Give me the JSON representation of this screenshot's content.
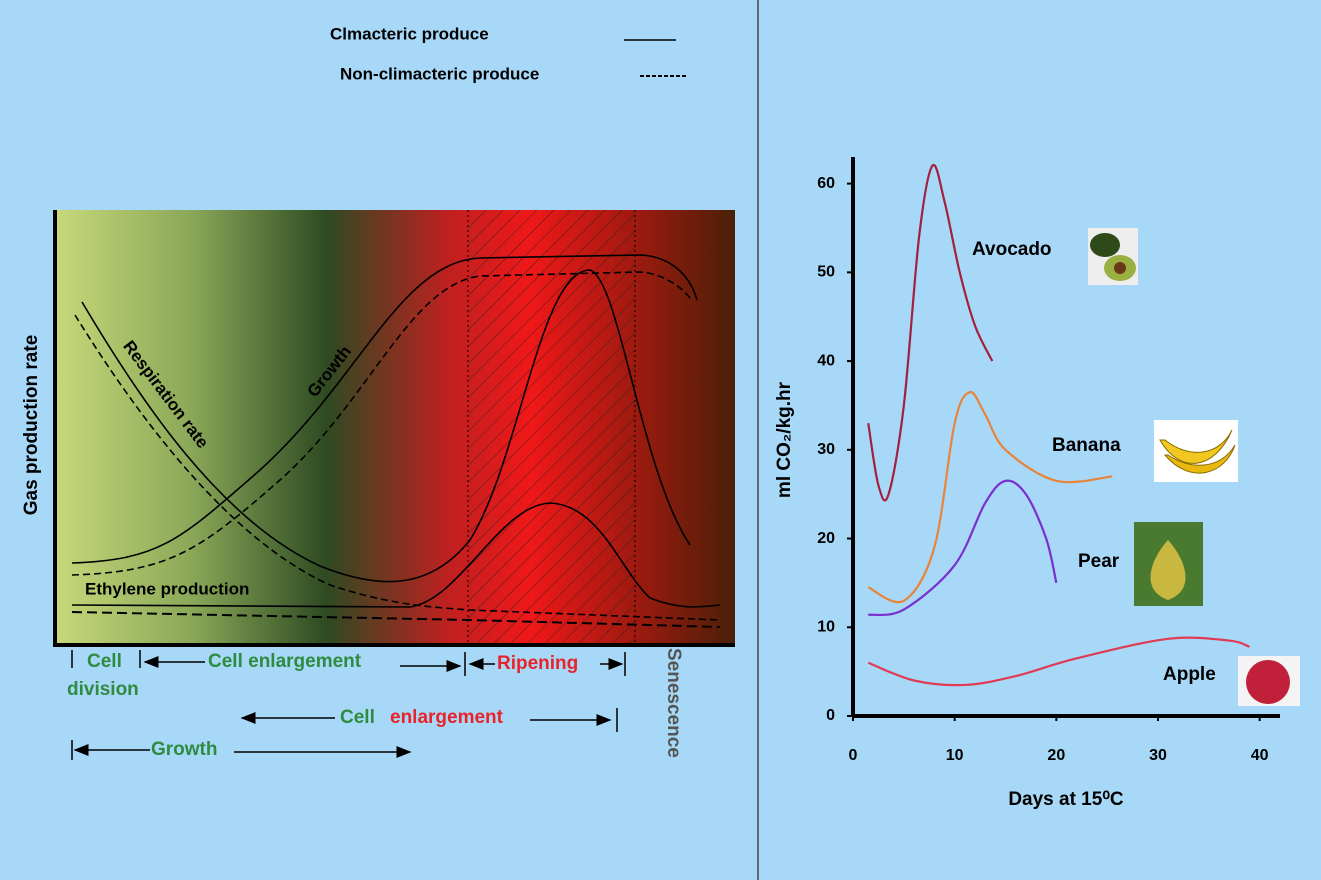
{
  "diagram": {
    "legend": [
      "Clmacteric produce",
      "Non-climacteric produce"
    ],
    "y_axis_label": "Gas production rate",
    "curve_labels": {
      "respiration": "Respiration rate",
      "growth": "Growth",
      "ethylene": "Ethylene production"
    },
    "phase_labels": {
      "cell_division": [
        "Cell",
        "division"
      ],
      "cell_enlargement": "Cell enlargement",
      "ripening": "Ripening",
      "senescence": "Senescence"
    },
    "climacteric_labels": {
      "cell": "Cell",
      "enlargement": "enlargement",
      "growth": "Growth"
    }
  },
  "chart_data": {
    "type": "line",
    "y_label": "ml CO₂/kg.hr",
    "x_label": "Days at 15⁰C",
    "xlim": [
      0,
      42
    ],
    "xticks": [
      0,
      10,
      20,
      30,
      40
    ],
    "ylim": [
      0,
      63
    ],
    "yticks": [
      0,
      10,
      20,
      30,
      40,
      50,
      60
    ],
    "series": [
      {
        "name": "Avocado",
        "color": "#a3203e",
        "x": [
          1.5,
          2.5,
          3.5,
          5,
          6.5,
          7.8,
          9,
          10.5,
          12,
          13.7
        ],
        "values": [
          33,
          26,
          25,
          35,
          54,
          62,
          58,
          50,
          44,
          40
        ]
      },
      {
        "name": "Banana",
        "color": "#e8843a",
        "x": [
          1.5,
          5,
          8,
          10,
          11.5,
          13,
          15,
          20,
          25.5
        ],
        "values": [
          14.5,
          13,
          19,
          33,
          36.5,
          34,
          30,
          26.5,
          27
        ]
      },
      {
        "name": "Pear",
        "color": "#7a2fd0",
        "x": [
          1.5,
          5,
          10,
          13,
          15,
          17,
          19,
          20
        ],
        "values": [
          11.4,
          12,
          17,
          24,
          26.5,
          25,
          20,
          15
        ]
      },
      {
        "name": "Apple",
        "color": "#e03a55",
        "x": [
          1.5,
          6,
          11,
          16,
          22,
          31,
          37,
          39
        ],
        "values": [
          6,
          4,
          3.5,
          4.5,
          6.5,
          8.7,
          8.5,
          7.8
        ]
      }
    ]
  }
}
